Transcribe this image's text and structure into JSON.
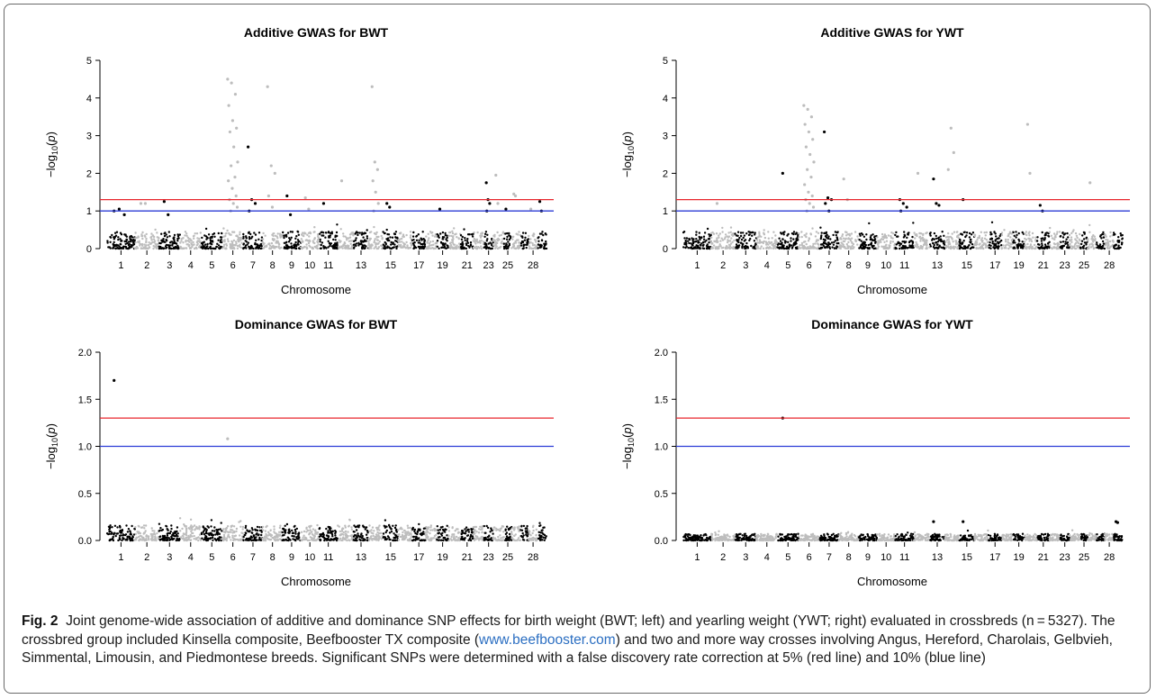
{
  "figure": {
    "label": "Fig. 2",
    "caption_1": "Joint genome-wide association of additive and dominance SNP effects for birth weight (BWT; left) and yearling weight (YWT; right) evaluated in crossbreds (n = 5327). The crossbred group included Kinsella composite, Beefbooster TX composite (",
    "caption_link": "www.beefbooster.com",
    "caption_2": ") and two and more way crosses involving Angus, Hereford, Charolais, Gelbvieh, Simmental, Limousin, and Piedmontese breeds. Significant SNPs were determined with a false discovery rate correction at 5% (red line) and 10% (blue line)"
  },
  "colors": {
    "odd_chromosome": "#000000",
    "even_chromosome": "#bdbdbd",
    "fdr5_line": "#e8262d",
    "fdr10_line": "#2b3cd6"
  },
  "chart_data": [
    {
      "type": "scatter",
      "title": "Additive GWAS for BWT",
      "xlabel": "Chromosome",
      "ylabel_html": "−log<tspan font-size='9' dy='3'>10</tspan><tspan dy='-3'>(</tspan><tspan font-style='italic'>p</tspan>)",
      "ylim": [
        0,
        5
      ],
      "yticks": [
        "0",
        "1",
        "2",
        "3",
        "4",
        "5"
      ],
      "x_tick_labels": [
        "1",
        "2",
        "3",
        "4",
        "5",
        "6",
        "7",
        "8",
        "9",
        "10",
        "11",
        "13",
        "15",
        "17",
        "19",
        "21",
        "23",
        "25",
        "28"
      ],
      "thresholds": {
        "fdr5": 1.3,
        "fdr10": 1.0
      },
      "baseline_max": 0.45,
      "peaks": [
        {
          "chromosome": 1,
          "values": [
            1.0,
            1.05,
            0.9
          ]
        },
        {
          "chromosome": 2,
          "values": [
            1.2,
            1.2
          ]
        },
        {
          "chromosome": 3,
          "values": [
            1.25,
            0.9
          ]
        },
        {
          "chromosome": 6,
          "values": [
            4.5,
            4.4,
            4.1,
            3.8,
            3.4,
            3.2,
            3.1,
            2.7,
            2.3,
            2.2,
            1.9,
            1.8,
            1.6,
            1.4,
            1.3,
            1.2,
            1.1,
            1.0
          ]
        },
        {
          "chromosome": 7,
          "values": [
            2.7,
            1.3,
            1.2,
            1.0
          ]
        },
        {
          "chromosome": 8,
          "values": [
            4.3,
            2.2,
            2.0,
            1.4,
            1.1
          ]
        },
        {
          "chromosome": 9,
          "values": [
            1.4,
            0.9
          ]
        },
        {
          "chromosome": 10,
          "values": [
            1.35,
            1.05
          ]
        },
        {
          "chromosome": 11,
          "values": [
            1.2
          ]
        },
        {
          "chromosome": 12,
          "values": [
            1.8
          ]
        },
        {
          "chromosome": 14,
          "values": [
            4.3,
            2.3,
            2.1,
            1.8,
            1.5,
            1.2,
            1.0
          ]
        },
        {
          "chromosome": 15,
          "values": [
            1.2,
            1.1
          ]
        },
        {
          "chromosome": 19,
          "values": [
            1.05
          ]
        },
        {
          "chromosome": 23,
          "values": [
            1.75,
            1.3,
            1.2,
            1.0
          ]
        },
        {
          "chromosome": 24,
          "values": [
            1.95,
            1.2
          ]
        },
        {
          "chromosome": 25,
          "values": [
            1.05
          ]
        },
        {
          "chromosome": 26,
          "values": [
            1.45,
            1.4
          ]
        },
        {
          "chromosome": 28,
          "values": [
            1.05
          ]
        },
        {
          "chromosome": 29,
          "values": [
            1.25,
            1.0
          ]
        }
      ]
    },
    {
      "type": "scatter",
      "title": "Additive GWAS for YWT",
      "xlabel": "Chromosome",
      "ylabel_html": "−log<tspan font-size='9' dy='3'>10</tspan><tspan dy='-3'>(</tspan><tspan font-style='italic'>p</tspan>)",
      "ylim": [
        0,
        5
      ],
      "yticks": [
        "0",
        "1",
        "2",
        "3",
        "4",
        "5"
      ],
      "x_tick_labels": [
        "1",
        "2",
        "3",
        "4",
        "5",
        "6",
        "7",
        "8",
        "9",
        "10",
        "11",
        "13",
        "15",
        "17",
        "19",
        "21",
        "23",
        "25",
        "28"
      ],
      "thresholds": {
        "fdr5": 1.3,
        "fdr10": 1.0
      },
      "baseline_max": 0.45,
      "peaks": [
        {
          "chromosome": 2,
          "values": [
            1.2
          ]
        },
        {
          "chromosome": 5,
          "values": [
            2.0
          ]
        },
        {
          "chromosome": 6,
          "values": [
            3.8,
            3.7,
            3.5,
            3.3,
            3.1,
            2.9,
            2.7,
            2.5,
            2.3,
            2.1,
            1.9,
            1.7,
            1.5,
            1.4,
            1.3,
            1.2,
            1.1,
            1.0
          ]
        },
        {
          "chromosome": 7,
          "values": [
            3.1,
            1.35,
            1.3,
            1.2,
            1.0
          ]
        },
        {
          "chromosome": 8,
          "values": [
            1.85,
            1.3
          ]
        },
        {
          "chromosome": 11,
          "values": [
            1.3,
            1.2,
            1.1,
            1.0
          ]
        },
        {
          "chromosome": 12,
          "values": [
            2.0
          ]
        },
        {
          "chromosome": 13,
          "values": [
            1.85,
            1.2,
            1.15
          ]
        },
        {
          "chromosome": 14,
          "values": [
            2.1,
            3.2,
            2.55
          ]
        },
        {
          "chromosome": 15,
          "values": [
            1.3
          ]
        },
        {
          "chromosome": 20,
          "values": [
            3.3,
            2.0
          ]
        },
        {
          "chromosome": 21,
          "values": [
            1.15,
            1.0
          ]
        },
        {
          "chromosome": 26,
          "values": [
            1.75
          ]
        }
      ]
    },
    {
      "type": "scatter",
      "title": "Dominance GWAS for BWT",
      "xlabel": "Chromosome",
      "ylabel_html": "−log<tspan font-size='9' dy='3'>10</tspan><tspan dy='-3'>(</tspan><tspan font-style='italic'>p</tspan>)",
      "ylim": [
        0,
        2
      ],
      "yticks": [
        "0.0",
        "0.5",
        "1.0",
        "1.5",
        "2.0"
      ],
      "x_tick_labels": [
        "1",
        "2",
        "3",
        "4",
        "5",
        "6",
        "7",
        "8",
        "9",
        "10",
        "11",
        "13",
        "15",
        "17",
        "19",
        "21",
        "23",
        "25",
        "28"
      ],
      "thresholds": {
        "fdr5": 1.3,
        "fdr10": 1.0
      },
      "baseline_max": 0.16,
      "peaks": [
        {
          "chromosome": 1,
          "values": [
            1.7
          ]
        },
        {
          "chromosome": 6,
          "values": [
            1.08
          ]
        }
      ]
    },
    {
      "type": "scatter",
      "title": "Dominance GWAS for YWT",
      "xlabel": "Chromosome",
      "ylabel_html": "−log<tspan font-size='9' dy='3'>10</tspan><tspan dy='-3'>(</tspan><tspan font-style='italic'>p</tspan>)",
      "ylim": [
        0,
        2
      ],
      "yticks": [
        "0.0",
        "0.5",
        "1.0",
        "1.5",
        "2.0"
      ],
      "x_tick_labels": [
        "1",
        "2",
        "3",
        "4",
        "5",
        "6",
        "7",
        "8",
        "9",
        "10",
        "11",
        "13",
        "15",
        "17",
        "19",
        "21",
        "23",
        "25",
        "28"
      ],
      "thresholds": {
        "fdr5": 1.3,
        "fdr10": 1.0
      },
      "baseline_max": 0.07,
      "peaks": [
        {
          "chromosome": 5,
          "values": [
            1.3
          ]
        },
        {
          "chromosome": 13,
          "values": [
            0.2
          ]
        },
        {
          "chromosome": 15,
          "values": [
            0.2
          ]
        },
        {
          "chromosome": 29,
          "values": [
            0.2,
            0.19
          ]
        }
      ]
    }
  ]
}
